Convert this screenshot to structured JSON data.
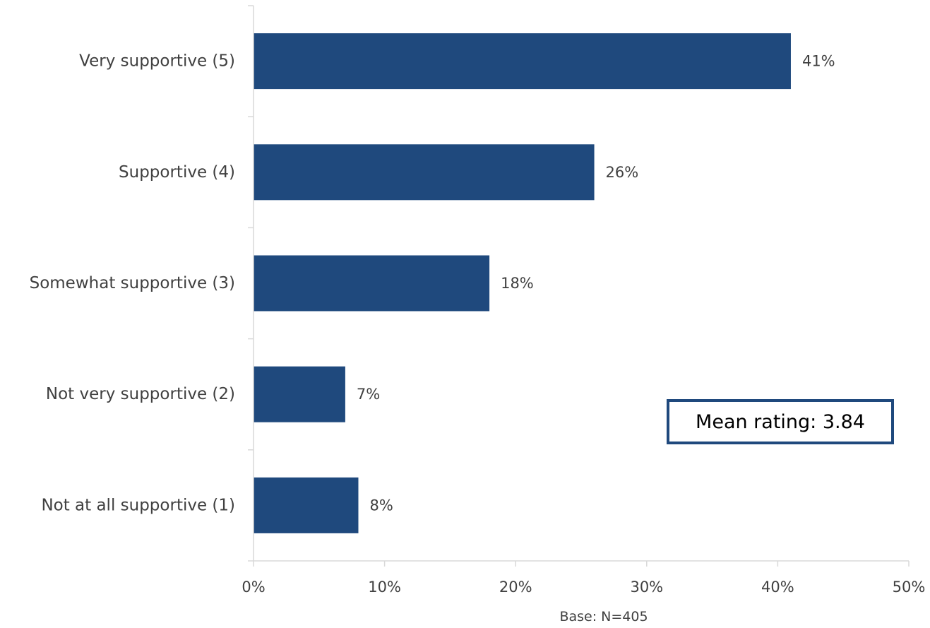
{
  "colors": {
    "bar": "#1f497d",
    "axis": "#d9d9d9",
    "text": "#404040"
  },
  "chart_data": {
    "type": "bar",
    "orientation": "horizontal",
    "categories": [
      "Very supportive (5)",
      "Supportive (4)",
      "Somewhat supportive (3)",
      "Not very supportive (2)",
      "Not at all supportive (1)"
    ],
    "values": [
      41,
      26,
      18,
      7,
      8
    ],
    "data_labels": [
      "41%",
      "26%",
      "18%",
      "7%",
      "8%"
    ],
    "xlim": [
      0,
      50
    ],
    "x_ticks": [
      0,
      10,
      20,
      30,
      40,
      50
    ],
    "x_tick_labels": [
      "0%",
      "10%",
      "20%",
      "30%",
      "40%",
      "50%"
    ],
    "grid": false,
    "legend": "none",
    "note": "Base: N=405",
    "annotation": "Mean rating: 3.84"
  }
}
